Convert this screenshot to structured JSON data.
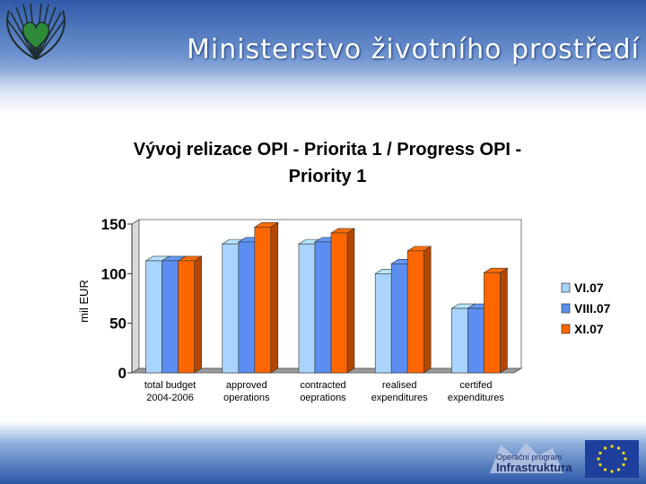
{
  "header": {
    "ministry_name": "Ministerstvo životního prostředí"
  },
  "chart_data": {
    "type": "bar",
    "title_line1": "Vývoj relizace OPI - Priorita 1 / Progress OPI -",
    "title_line2": "Priority 1",
    "xlabel": "",
    "ylabel": "mil EUR",
    "ylim": [
      0,
      150
    ],
    "yticks": [
      "0",
      "50",
      "100",
      "150"
    ],
    "grid": false,
    "legend_position": "right",
    "categories": [
      [
        "total budget",
        "2004-2006"
      ],
      [
        "approved",
        "operations"
      ],
      [
        "contracted",
        "oeprations"
      ],
      [
        "realised",
        "expenditures"
      ],
      [
        "certifed",
        "expenditures"
      ]
    ],
    "series": [
      {
        "name": "VI.07",
        "color": "#a9d4ff",
        "values": [
          113,
          130,
          130,
          100,
          65
        ]
      },
      {
        "name": "VIII.07",
        "color": "#5b8ef0",
        "values": [
          113,
          132,
          132,
          110,
          65
        ]
      },
      {
        "name": "XI.07",
        "color": "#ff6600",
        "values": [
          113,
          147,
          141,
          123,
          101
        ]
      }
    ]
  },
  "footer": {
    "op_line1": "Operační program",
    "op_line2": "Infrastruktura"
  }
}
